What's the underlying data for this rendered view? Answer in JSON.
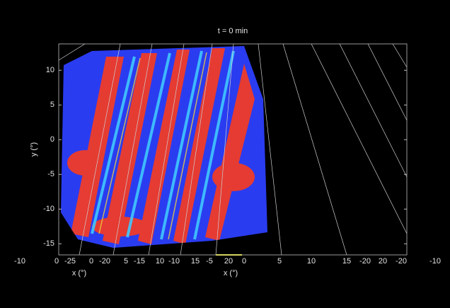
{
  "chart_data": {
    "type": "image",
    "title": "t = 0 min",
    "ylabel": "y (°)",
    "xlabels": [
      "x (°)",
      "x (°)"
    ],
    "ylim": [
      -16.6,
      13.8
    ],
    "yticks": [
      -15,
      -10,
      -5,
      0,
      5,
      10
    ],
    "xtick_labels": [
      "-10",
      "0",
      "-25",
      "0",
      "-20",
      "5",
      "-15",
      "10",
      "-10",
      "15",
      "-5",
      "20",
      "0",
      "5",
      "10",
      "15",
      "-20",
      "20",
      "-20",
      "-10"
    ]
  }
}
